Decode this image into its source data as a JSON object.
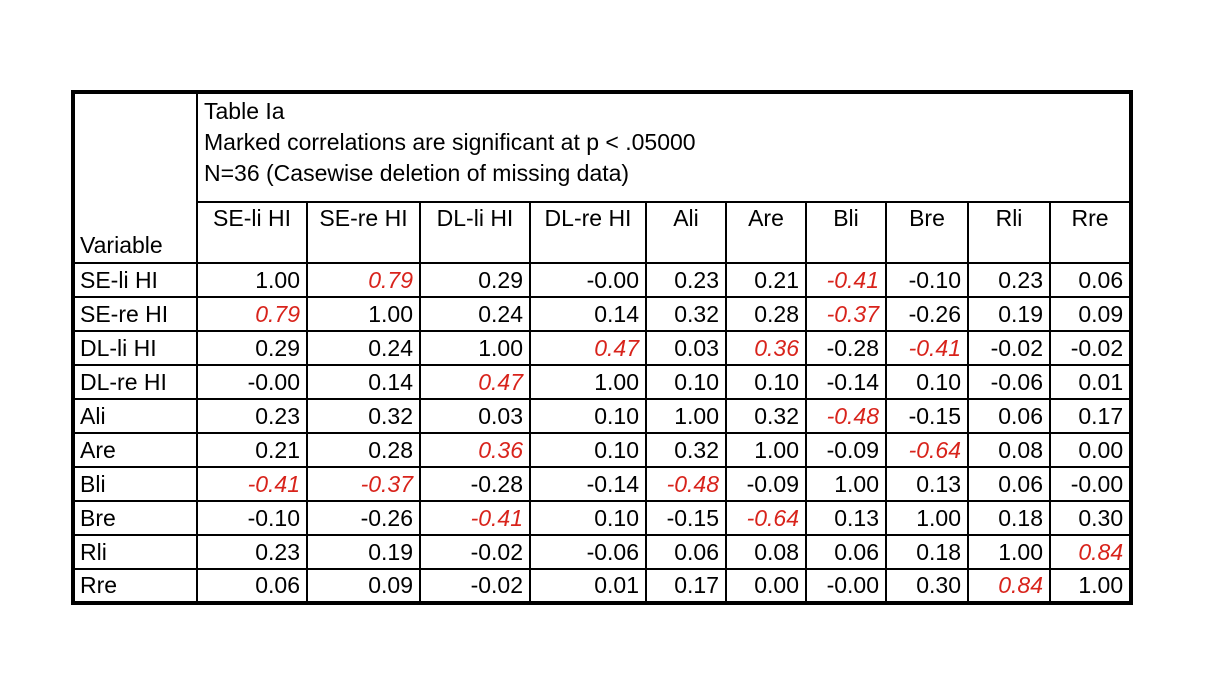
{
  "chart_data": {
    "type": "table",
    "title": "Table Ia",
    "note_significance": "Marked correlations are significant at p < .05000",
    "note_n": "N=36 (Casewise deletion of missing data)",
    "row_header_label": "Variable",
    "columns": [
      "SE-li HI",
      "SE-re HI",
      "DL-li HI",
      "DL-re HI",
      "Ali",
      "Are",
      "Bli",
      "Bre",
      "Rli",
      "Rre"
    ],
    "rows": [
      {
        "label": "SE-li HI",
        "values": [
          "1.00",
          "0.79",
          "0.29",
          "-0.00",
          "0.23",
          "0.21",
          "-0.41",
          "-0.10",
          "0.23",
          "0.06"
        ],
        "significant": [
          false,
          true,
          false,
          false,
          false,
          false,
          true,
          false,
          false,
          false
        ]
      },
      {
        "label": "SE-re HI",
        "values": [
          "0.79",
          "1.00",
          "0.24",
          "0.14",
          "0.32",
          "0.28",
          "-0.37",
          "-0.26",
          "0.19",
          "0.09"
        ],
        "significant": [
          true,
          false,
          false,
          false,
          false,
          false,
          true,
          false,
          false,
          false
        ]
      },
      {
        "label": "DL-li HI",
        "values": [
          "0.29",
          "0.24",
          "1.00",
          "0.47",
          "0.03",
          "0.36",
          "-0.28",
          "-0.41",
          "-0.02",
          "-0.02"
        ],
        "significant": [
          false,
          false,
          false,
          true,
          false,
          true,
          false,
          true,
          false,
          false
        ]
      },
      {
        "label": "DL-re HI",
        "values": [
          "-0.00",
          "0.14",
          "0.47",
          "1.00",
          "0.10",
          "0.10",
          "-0.14",
          "0.10",
          "-0.06",
          "0.01"
        ],
        "significant": [
          false,
          false,
          true,
          false,
          false,
          false,
          false,
          false,
          false,
          false
        ]
      },
      {
        "label": "Ali",
        "values": [
          "0.23",
          "0.32",
          "0.03",
          "0.10",
          "1.00",
          "0.32",
          "-0.48",
          "-0.15",
          "0.06",
          "0.17"
        ],
        "significant": [
          false,
          false,
          false,
          false,
          false,
          false,
          true,
          false,
          false,
          false
        ]
      },
      {
        "label": "Are",
        "values": [
          "0.21",
          "0.28",
          "0.36",
          "0.10",
          "0.32",
          "1.00",
          "-0.09",
          "-0.64",
          "0.08",
          "0.00"
        ],
        "significant": [
          false,
          false,
          true,
          false,
          false,
          false,
          false,
          true,
          false,
          false
        ]
      },
      {
        "label": "Bli",
        "values": [
          "-0.41",
          "-0.37",
          "-0.28",
          "-0.14",
          "-0.48",
          "-0.09",
          "1.00",
          "0.13",
          "0.06",
          "-0.00"
        ],
        "significant": [
          true,
          true,
          false,
          false,
          true,
          false,
          false,
          false,
          false,
          false
        ]
      },
      {
        "label": "Bre",
        "values": [
          "-0.10",
          "-0.26",
          "-0.41",
          "0.10",
          "-0.15",
          "-0.64",
          "0.13",
          "1.00",
          "0.18",
          "0.30"
        ],
        "significant": [
          false,
          false,
          true,
          false,
          false,
          true,
          false,
          false,
          false,
          false
        ]
      },
      {
        "label": "Rli",
        "values": [
          "0.23",
          "0.19",
          "-0.02",
          "-0.06",
          "0.06",
          "0.08",
          "0.06",
          "0.18",
          "1.00",
          "0.84"
        ],
        "significant": [
          false,
          false,
          false,
          false,
          false,
          false,
          false,
          false,
          false,
          true
        ]
      },
      {
        "label": "Rre",
        "values": [
          "0.06",
          "0.09",
          "-0.02",
          "0.01",
          "0.17",
          "0.00",
          "-0.00",
          "0.30",
          "0.84",
          "1.00"
        ],
        "significant": [
          false,
          false,
          false,
          false,
          false,
          false,
          false,
          false,
          true,
          false
        ]
      }
    ],
    "legend": "red italic values = significant correlations"
  },
  "colors": {
    "significant_value": "#d8231b",
    "text": "#000000",
    "grid": "#000000",
    "background": "#ffffff"
  }
}
